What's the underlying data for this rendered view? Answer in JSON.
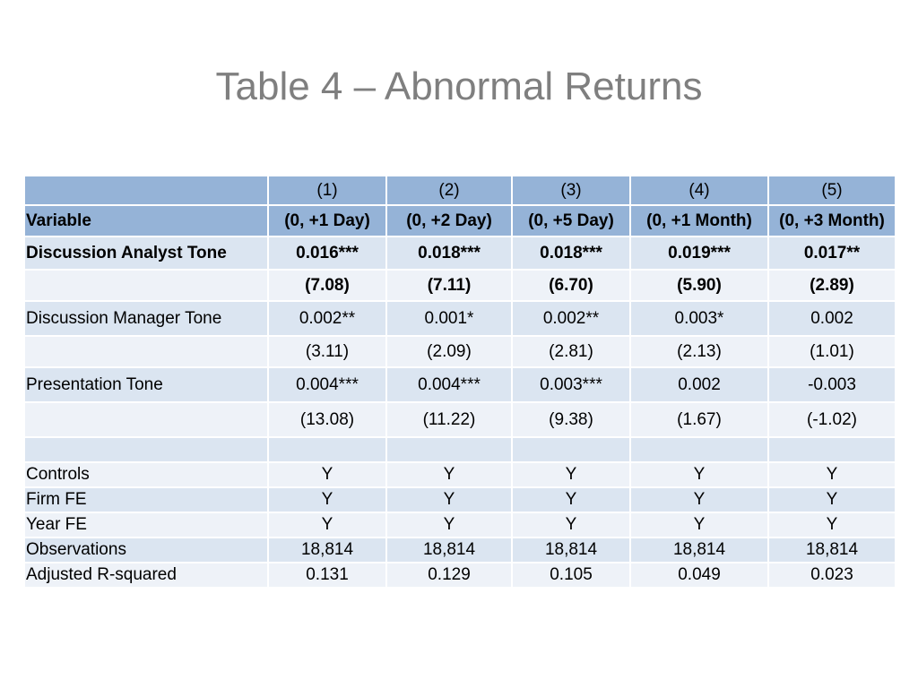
{
  "title": "Table 4 – Abnormal Returns",
  "table": {
    "columns": [
      "(1)",
      "(2)",
      "(3)",
      "(4)",
      "(5)"
    ],
    "windows_label": "Variable",
    "windows": [
      "(0, +1 Day)",
      "(0, +2 Day)",
      "(0, +5 Day)",
      "(0, +1 Month)",
      "(0, +3 Month)"
    ],
    "rows": [
      {
        "label": "Discussion Analyst Tone",
        "values": [
          "0.016***",
          "0.018***",
          "0.018***",
          "0.019***",
          "0.017**"
        ]
      },
      {
        "label": "",
        "values": [
          "(7.08)",
          "(7.11)",
          "(6.70)",
          "(5.90)",
          "(2.89)"
        ]
      },
      {
        "label": "Discussion Manager Tone",
        "values": [
          "0.002**",
          "0.001*",
          "0.002**",
          "0.003*",
          "0.002"
        ]
      },
      {
        "label": "",
        "values": [
          "(3.11)",
          "(2.09)",
          "(2.81)",
          "(2.13)",
          "(1.01)"
        ]
      },
      {
        "label": "Presentation Tone",
        "values": [
          "0.004***",
          "0.004***",
          "0.003***",
          "0.002",
          "-0.003"
        ]
      },
      {
        "label": "",
        "values": [
          "(13.08)",
          "(11.22)",
          "(9.38)",
          "(1.67)",
          "(-1.02)"
        ]
      },
      {
        "label": "",
        "values": [
          "",
          "",
          "",
          "",
          ""
        ]
      },
      {
        "label": "Controls",
        "values": [
          "Y",
          "Y",
          "Y",
          "Y",
          "Y"
        ]
      },
      {
        "label": "Firm FE",
        "values": [
          "Y",
          "Y",
          "Y",
          "Y",
          "Y"
        ]
      },
      {
        "label": "Year FE",
        "values": [
          "Y",
          "Y",
          "Y",
          "Y",
          "Y"
        ]
      },
      {
        "label": "Observations",
        "values": [
          "18,814",
          "18,814",
          "18,814",
          "18,814",
          "18,814"
        ]
      },
      {
        "label": "Adjusted R-squared",
        "values": [
          "0.131",
          "0.129",
          "0.105",
          "0.049",
          "0.023"
        ]
      }
    ]
  }
}
